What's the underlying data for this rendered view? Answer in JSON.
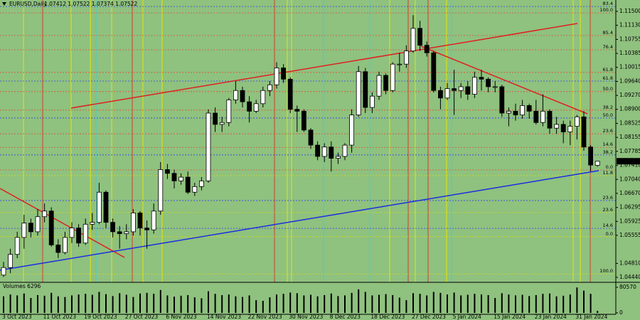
{
  "chart_data": {
    "type": "candlestick",
    "symbol": "EURUSD,Daily",
    "quote": "1.07412 1.07522 1.07374 1.07522",
    "volume_label": "Volumes 6296",
    "last_price_label": "1.07522",
    "up_color": "#ffffff",
    "down_color": "#000000",
    "background": "#8fc17f",
    "categories": [
      "3 Oct 2023",
      null,
      null,
      null,
      null,
      null,
      "11 Oct 2023",
      null,
      null,
      null,
      null,
      null,
      "19 Oct 2023",
      null,
      null,
      null,
      null,
      null,
      "27 Oct 2023",
      null,
      null,
      null,
      null,
      null,
      "6 Nov 2023",
      null,
      null,
      null,
      null,
      null,
      "14 Nov 2023",
      null,
      null,
      null,
      null,
      null,
      "22 Nov 2023",
      null,
      null,
      null,
      null,
      null,
      "30 Nov 2023",
      null,
      null,
      null,
      null,
      null,
      "8 Dec 2023",
      null,
      null,
      null,
      null,
      null,
      "18 Dec 2023",
      null,
      null,
      null,
      null,
      null,
      "27 Dec 2023",
      null,
      null,
      null,
      null,
      null,
      "5 Jan 2024",
      null,
      null,
      null,
      null,
      null,
      "15 Jan 2024",
      null,
      null,
      null,
      null,
      null,
      "23 Jan 2024",
      null,
      null,
      null,
      null,
      null,
      "31 Jan 2024",
      null,
      null,
      null
    ],
    "open": [
      1.045,
      1.047,
      1.0505,
      1.055,
      1.0588,
      1.0565,
      1.0605,
      1.062,
      1.053,
      1.051,
      1.055,
      1.0575,
      1.0535,
      1.0585,
      1.059,
      1.067,
      1.059,
      1.0565,
      1.056,
      1.0565,
      1.0615,
      1.0575,
      1.057,
      1.062,
      1.073,
      1.072,
      1.07,
      1.071,
      1.067,
      1.0685,
      1.07,
      1.088,
      1.085,
      1.0855,
      1.0915,
      1.094,
      1.091,
      1.0885,
      1.0905,
      1.094,
      1.0955,
      1.1,
      1.097,
      1.089,
      1.0885,
      1.0835,
      1.0795,
      1.0765,
      1.079,
      1.076,
      1.0765,
      1.0795,
      1.0875,
      1.099,
      1.0895,
      1.0925,
      1.098,
      1.094,
      1.101,
      1.101,
      1.1045,
      1.1105,
      1.106,
      1.104,
      1.094,
      1.092,
      1.0945,
      1.094,
      1.095,
      1.093,
      1.0975,
      1.097,
      1.095,
      1.095,
      1.088,
      1.0885,
      1.0875,
      1.09,
      1.0885,
      1.0855,
      1.0885,
      1.084,
      1.085,
      1.083,
      1.0845,
      1.087,
      1.079,
      1.07412
    ],
    "high": [
      1.0485,
      1.052,
      1.0565,
      1.061,
      1.06,
      1.0625,
      1.064,
      1.063,
      1.0545,
      1.0565,
      1.059,
      1.0585,
      1.06,
      1.0615,
      1.0695,
      1.0675,
      1.06,
      1.058,
      1.0585,
      1.0625,
      1.062,
      1.0595,
      1.064,
      1.075,
      1.0745,
      1.073,
      1.072,
      1.0725,
      1.0695,
      1.071,
      1.089,
      1.0895,
      1.087,
      1.092,
      1.0965,
      1.095,
      1.0925,
      1.0915,
      1.095,
      1.0965,
      1.1015,
      1.101,
      1.0975,
      1.09,
      1.089,
      1.084,
      1.0805,
      1.08,
      1.0805,
      1.0775,
      1.08,
      1.089,
      1.1005,
      1.1,
      1.0935,
      1.099,
      1.0985,
      1.1015,
      1.104,
      1.106,
      1.114,
      1.1125,
      1.107,
      1.1045,
      1.095,
      1.096,
      1.0995,
      1.096,
      1.0965,
      1.099,
      1.0995,
      1.0975,
      1.0965,
      1.0955,
      1.0895,
      1.0905,
      1.0915,
      1.0905,
      1.0915,
      1.093,
      1.089,
      1.087,
      1.086,
      1.086,
      1.0875,
      1.0885,
      1.0795,
      1.07522
    ],
    "low": [
      1.0445,
      1.0455,
      1.0495,
      1.052,
      1.055,
      1.0555,
      1.059,
      1.0525,
      1.0495,
      1.0505,
      1.0535,
      1.0525,
      1.053,
      1.057,
      1.0585,
      1.0575,
      1.055,
      1.052,
      1.0545,
      1.0555,
      1.0555,
      1.052,
      1.056,
      1.061,
      1.0705,
      1.068,
      1.069,
      1.0665,
      1.066,
      1.0675,
      1.0695,
      1.083,
      1.083,
      1.0845,
      1.0905,
      1.0895,
      1.0855,
      1.088,
      1.0895,
      1.0925,
      1.0945,
      1.096,
      1.088,
      1.083,
      1.083,
      1.0785,
      1.0755,
      1.075,
      1.0725,
      1.0745,
      1.0755,
      1.0775,
      1.087,
      1.088,
      1.088,
      1.0915,
      1.093,
      1.0935,
      1.099,
      1.1,
      1.104,
      1.1045,
      1.103,
      1.0935,
      1.089,
      1.0915,
      1.0875,
      1.092,
      1.0915,
      1.092,
      1.094,
      1.0935,
      1.0935,
      1.087,
      1.0845,
      1.086,
      1.0865,
      1.0865,
      1.085,
      1.0845,
      1.0825,
      1.0825,
      1.08,
      1.0795,
      1.081,
      1.078,
      1.0725,
      1.07374
    ],
    "close": [
      1.047,
      1.0505,
      1.055,
      1.0588,
      1.0565,
      1.0605,
      1.062,
      1.053,
      1.051,
      1.055,
      1.0575,
      1.0535,
      1.0585,
      1.059,
      1.067,
      1.059,
      1.0565,
      1.056,
      1.0565,
      1.0615,
      1.0575,
      1.057,
      1.062,
      1.073,
      1.072,
      1.07,
      1.071,
      1.067,
      1.0685,
      1.07,
      1.088,
      1.085,
      1.0855,
      1.0915,
      1.094,
      1.091,
      1.0885,
      1.0905,
      1.094,
      1.0955,
      1.1,
      1.097,
      1.089,
      1.0885,
      1.0835,
      1.0795,
      1.0765,
      1.079,
      1.076,
      1.0765,
      1.0795,
      1.0875,
      1.099,
      1.0895,
      1.0925,
      1.098,
      1.094,
      1.101,
      1.101,
      1.1045,
      1.1105,
      1.106,
      1.104,
      1.094,
      1.092,
      1.0945,
      1.094,
      1.095,
      1.093,
      1.0975,
      1.097,
      1.095,
      1.095,
      1.088,
      1.0885,
      1.0875,
      1.09,
      1.0885,
      1.0855,
      1.0885,
      1.084,
      1.085,
      1.083,
      1.0845,
      1.087,
      1.079,
      1.0742,
      1.07522
    ],
    "volumes": [
      52000,
      58000,
      55000,
      61000,
      47000,
      56000,
      54000,
      63000,
      52000,
      50000,
      55000,
      58000,
      60000,
      57000,
      66000,
      59000,
      53000,
      62000,
      57000,
      50000,
      61000,
      63000,
      60000,
      72000,
      55000,
      51000,
      54000,
      56000,
      49000,
      46000,
      68000,
      60000,
      56000,
      58000,
      52000,
      50000,
      55000,
      40000,
      38000,
      49000,
      58000,
      60000,
      64000,
      62000,
      55000,
      57000,
      52000,
      56000,
      61000,
      53000,
      55000,
      63000,
      74000,
      66000,
      55000,
      57000,
      59000,
      56000,
      48000,
      40000,
      62000,
      60000,
      55000,
      66000,
      63000,
      58000,
      64000,
      55000,
      57000,
      60000,
      58000,
      56000,
      47000,
      62000,
      58000,
      55000,
      57000,
      53000,
      56000,
      60000,
      61000,
      52000,
      54000,
      58000,
      80000,
      70000,
      60000,
      6296
    ],
    "ylim": [
      1.04308,
      1.11802
    ],
    "yticks": [
      {
        "value": 1.115,
        "label": "1.11500"
      },
      {
        "value": 1.1113,
        "label": "1.11130"
      },
      {
        "value": 1.10755,
        "label": "1.10755"
      },
      {
        "value": 1.10385,
        "label": "1.10385"
      },
      {
        "value": 1.10015,
        "label": "1.10015"
      },
      {
        "value": 1.0964,
        "label": "1.09640"
      },
      {
        "value": 1.0927,
        "label": "1.09270"
      },
      {
        "value": 1.089,
        "label": "1.08900"
      },
      {
        "value": 1.08525,
        "label": "1.08525"
      },
      {
        "value": 1.08155,
        "label": "1.08155"
      },
      {
        "value": 1.07785,
        "label": "1.07785"
      },
      {
        "value": 1.0741,
        "label": "1.07410"
      },
      {
        "value": 1.0704,
        "label": "1.07040"
      },
      {
        "value": 1.0667,
        "label": "1.06670"
      },
      {
        "value": 1.06295,
        "label": "1.06295"
      },
      {
        "value": 1.05925,
        "label": "1.05925"
      },
      {
        "value": 1.05555,
        "label": "1.05555"
      },
      {
        "value": 1.0481,
        "label": "1.04810"
      },
      {
        "value": 1.0444,
        "label": "1.04440"
      }
    ],
    "volume_ylim": [
      0,
      80570
    ],
    "volume_yticks": [
      0,
      80570
    ],
    "fib_levels": [
      {
        "label": "83.4",
        "level": 1.1163,
        "color": "#2233ee"
      },
      {
        "label": "100.0",
        "level": 1.1146,
        "color": "#e8402a"
      },
      {
        "label": "85.4",
        "level": 1.1086,
        "color": "#e8402a"
      },
      {
        "label": "76.4",
        "level": 1.1048,
        "color": "#e8402a"
      },
      {
        "label": "61.8",
        "level": 1.0988,
        "color": "#e8402a"
      },
      {
        "label": "61.8",
        "level": 1.0965,
        "color": "#2233ee"
      },
      {
        "label": "50.0",
        "level": 1.0937,
        "color": "#e8402a"
      },
      {
        "label": "38.2",
        "level": 1.0888,
        "color": "#e8402a"
      },
      {
        "label": "50.0",
        "level": 1.0867,
        "color": "#2233ee"
      },
      {
        "label": "23.6",
        "level": 1.0825,
        "color": "#e8402a"
      },
      {
        "label": "14.6",
        "level": 1.0789,
        "color": "#e8402a"
      },
      {
        "label": "38.2",
        "level": 1.0769,
        "color": "#2233ee"
      },
      {
        "label": "0.0",
        "level": 1.0729,
        "color": "#e8402a"
      },
      {
        "label": "11.8",
        "level": 1.0714,
        "color": "#e6e600"
      },
      {
        "label": "23.6",
        "level": 1.0648,
        "color": "#2233ee"
      },
      {
        "label": "23.6",
        "level": 1.0616,
        "color": "#e6e600"
      },
      {
        "label": "14.6",
        "level": 1.0574,
        "color": "#2233ee"
      },
      {
        "label": "0.0",
        "level": 1.0552,
        "color": "#e6e600"
      },
      {
        "label": "100.0",
        "level": 1.0453,
        "color": "#e6e600"
      }
    ]
  }
}
